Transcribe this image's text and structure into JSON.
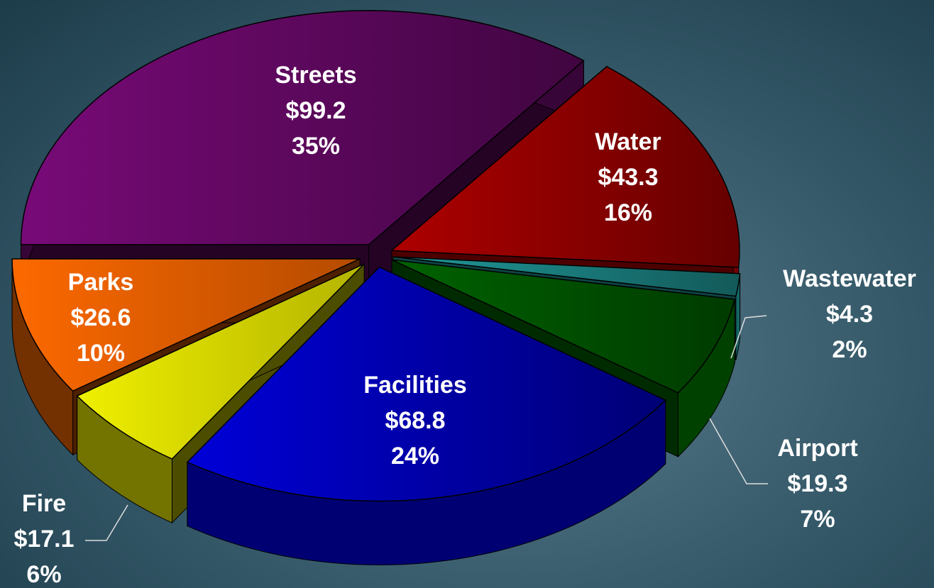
{
  "chart_data": {
    "type": "pie",
    "categories": [
      "Streets",
      "Water",
      "Wastewater",
      "Airport",
      "Facilities",
      "Fire",
      "Parks"
    ],
    "values": [
      99.2,
      43.3,
      4.3,
      19.3,
      68.8,
      17.1,
      26.6
    ],
    "value_labels": [
      "$99.2",
      "$43.3",
      "$4.3",
      "$19.3",
      "$68.8",
      "$17.1",
      "$26.6"
    ],
    "percents": [
      35,
      16,
      2,
      7,
      24,
      6,
      10
    ],
    "percent_labels": [
      "35%",
      "16%",
      "2%",
      "7%",
      "24%",
      "6%",
      "10%"
    ],
    "colors": [
      "#7a0a7a",
      "#ff0000",
      "#30e0e0",
      "#009000",
      "#0000ff",
      "#ffff00",
      "#ff6a00"
    ]
  }
}
